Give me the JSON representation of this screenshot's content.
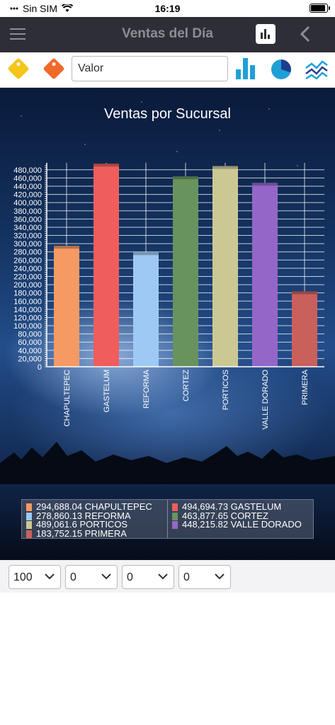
{
  "status": {
    "carrier": "Sin SIM",
    "time": "16:19"
  },
  "nav": {
    "title": "Ventas del Día"
  },
  "toolbar": {
    "search_value": "Valor"
  },
  "chart_data": {
    "type": "bar",
    "title": "Ventas por Sucursal",
    "categories": [
      "CHAPULTEPEC",
      "GASTELUM",
      "REFORMA",
      "CORTEZ",
      "PORTICOS",
      "VALLE DORADO",
      "PRIMERA"
    ],
    "values": [
      294688.04,
      494694.73,
      278860.13,
      463877.65,
      489061.6,
      448215.82,
      183752.15
    ],
    "colors": [
      "#f59a63",
      "#ef5d5d",
      "#9ec9f5",
      "#68935e",
      "#cbc894",
      "#9466c8",
      "#c9605c"
    ],
    "ylim": [
      0,
      490000
    ],
    "yticks": [
      "0",
      "20,000",
      "40,000",
      "60,000",
      "80,000",
      "100,000",
      "120,000",
      "140,000",
      "160,000",
      "180,000",
      "200,000",
      "220,000",
      "240,000",
      "260,000",
      "280,000",
      "300,000",
      "320,000",
      "340,000",
      "360,000",
      "380,000",
      "400,000",
      "420,000",
      "440,000",
      "460,000",
      "480,000"
    ],
    "grid": true,
    "legend": "bottom"
  },
  "legend": {
    "left": [
      {
        "text": "294,688.04 CHAPULTEPEC",
        "color": "#f59a63"
      },
      {
        "text": "278,860.13 REFORMA",
        "color": "#9ec9f5"
      },
      {
        "text": "489,061.6 PORTICOS",
        "color": "#cbc894"
      },
      {
        "text": "183,752.15 PRIMERA",
        "color": "#c9605c"
      }
    ],
    "right": [
      {
        "text": "494,694.73 GASTELUM",
        "color": "#ef5d5d"
      },
      {
        "text": "463,877.65 CORTEZ",
        "color": "#68935e"
      },
      {
        "text": "448,215.82 VALLE DORADO",
        "color": "#9466c8"
      }
    ]
  },
  "filters": [
    {
      "value": "100"
    },
    {
      "value": "0"
    },
    {
      "value": "0"
    },
    {
      "value": "0"
    }
  ]
}
